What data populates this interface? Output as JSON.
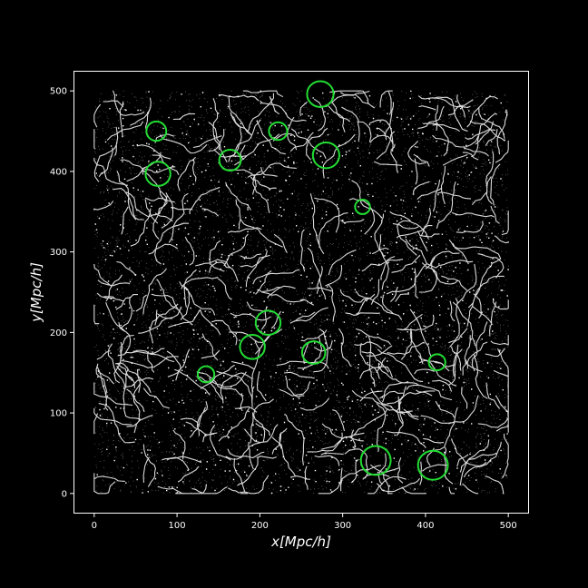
{
  "chart_data": {
    "type": "scatter",
    "title": "",
    "xlabel": "x[Mpc/h]",
    "ylabel": "y[Mpc/h]",
    "xlim": [
      -25,
      525
    ],
    "ylim": [
      -25,
      525
    ],
    "xticks": [
      0,
      100,
      200,
      300,
      400,
      500
    ],
    "yticks": [
      0,
      100,
      200,
      300,
      400,
      500
    ],
    "grid": false,
    "background": "#000000",
    "point_color": "#ffffff",
    "circle_color": "#22dd33",
    "series": [
      {
        "circles": [
          {
            "x": 273,
            "y": 496,
            "r": 16
          },
          {
            "x": 75,
            "y": 450,
            "r": 12
          },
          {
            "x": 222,
            "y": 450,
            "r": 11
          },
          {
            "x": 280,
            "y": 420,
            "r": 16
          },
          {
            "x": 164,
            "y": 414,
            "r": 13
          },
          {
            "x": 77,
            "y": 397,
            "r": 15
          },
          {
            "x": 324,
            "y": 356,
            "r": 9
          },
          {
            "x": 210,
            "y": 212,
            "r": 15
          },
          {
            "x": 191,
            "y": 182,
            "r": 15
          },
          {
            "x": 265,
            "y": 175,
            "r": 14
          },
          {
            "x": 135,
            "y": 148,
            "r": 10
          },
          {
            "x": 414,
            "y": 163,
            "r": 10
          },
          {
            "x": 340,
            "y": 41,
            "r": 18
          },
          {
            "x": 409,
            "y": 35,
            "r": 18
          }
        ]
      }
    ]
  }
}
